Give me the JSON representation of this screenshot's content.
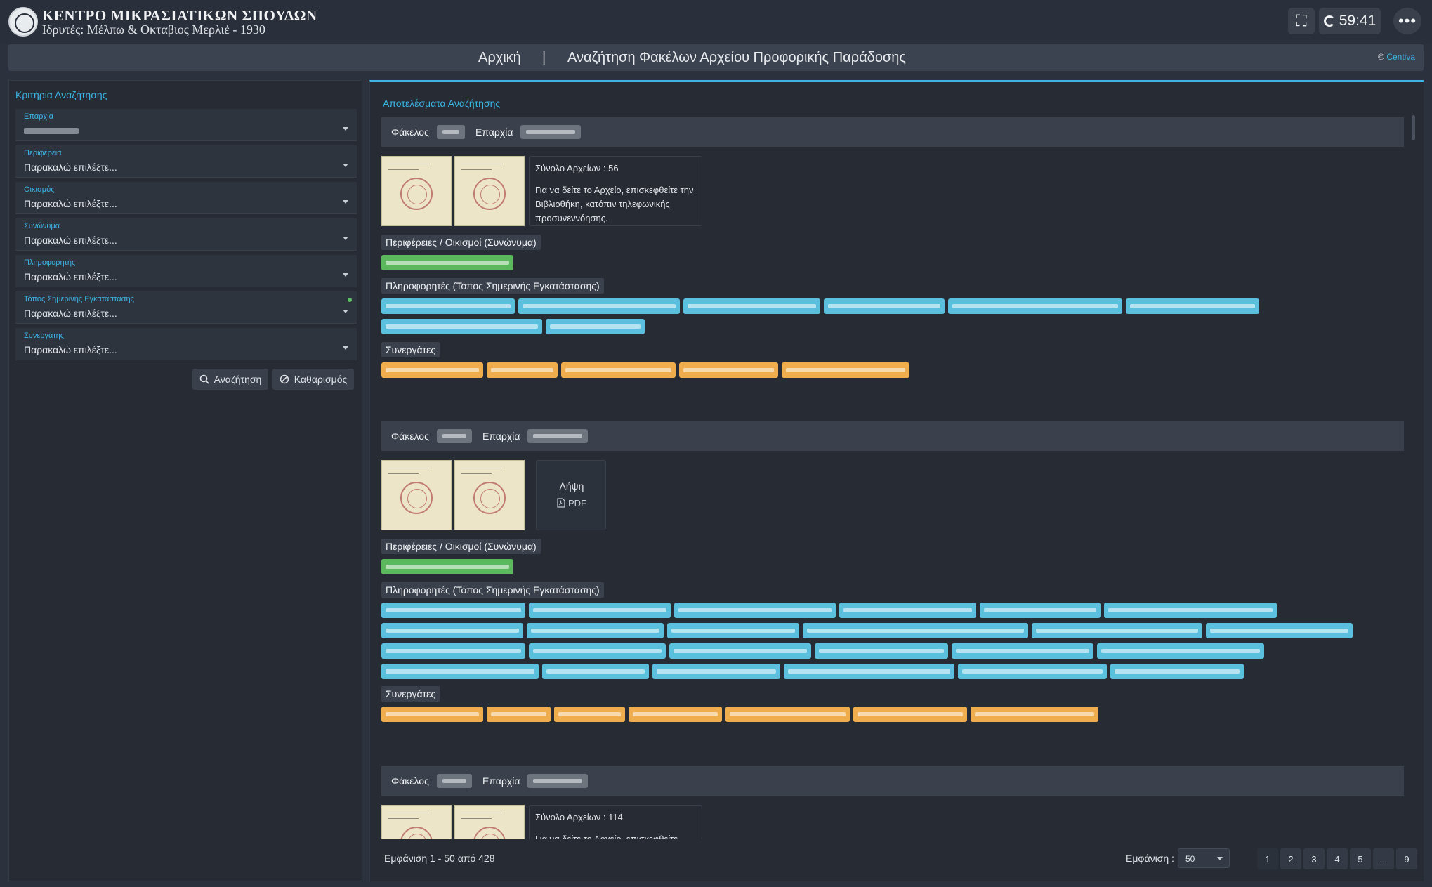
{
  "header": {
    "title": "ΚΕΝΤΡΟ ΜΙΚΡΑΣΙΑΤΙΚΩΝ ΣΠΟΥΔΩΝ",
    "subtitle": "Ιδρυτές: Μέλπω & Οκταβιος Μερλιέ - 1930",
    "timer": "59:41",
    "fullscreen_icon": "expand-icon",
    "more_icon": "more-dots-icon"
  },
  "nav": {
    "home": "Αρχική",
    "separator": "|",
    "search": "Αναζήτηση Φακέλων Αρχείου Προφορικής Παράδοσης",
    "credit_prefix": "©",
    "credit_name": "Centiva"
  },
  "sidebar": {
    "title": "Κριτήρια Αναζήτησης",
    "fields": [
      {
        "label": "Επαρχία",
        "value": ""
      },
      {
        "label": "Περιφέρεια",
        "value": "Παρακαλώ επιλέξτε..."
      },
      {
        "label": "Οικισμός",
        "value": "Παρακαλώ επιλέξτε..."
      },
      {
        "label": "Συνώνυμα",
        "value": "Παρακαλώ επιλέξτε..."
      },
      {
        "label": "Πληροφορητής",
        "value": "Παρακαλώ επιλέξτε..."
      },
      {
        "label": "Τόπος Σημερινής Εγκατάστασης",
        "value": "Παρακαλώ επιλέξτε..."
      },
      {
        "label": "Συνεργάτης",
        "value": "Παρακαλώ επιλέξτε..."
      }
    ],
    "search_button": "Αναζήτηση",
    "clear_button": "Καθαρισμός"
  },
  "results": {
    "title": "Αποτελέσματα Αναζήτησης",
    "folder_label": "Φάκελος",
    "province_label": "Επαρχία",
    "regions_label": "Περιφέρειες / Οικισμοί (Συνώνυμα)",
    "informants_label": "Πληροφορητές (Τόπος Σημερινής Εγκατάστασης)",
    "collaborators_label": "Συνεργάτες",
    "record1": {
      "total": "Σύνολο Αρχείων : 56",
      "note": "Για να δείτε το Αρχείο, επισκεφθείτε την Βιβλιοθήκη, κατόπιν τηλεφωνικής προσυνεννόησης."
    },
    "record2": {
      "download": "Λήψη",
      "pdf": "PDF"
    },
    "record3": {
      "total": "Σύνολο Αρχείων : 114",
      "note": "Για να δείτε το Αρχείο, επισκεφθείτε"
    }
  },
  "footer": {
    "info": "Εμφάνιση 1 - 50 από 428",
    "show_label": "Εμφάνιση :",
    "page_size": "50",
    "pages": [
      "1",
      "2",
      "3",
      "4",
      "5",
      "...",
      "9"
    ]
  }
}
